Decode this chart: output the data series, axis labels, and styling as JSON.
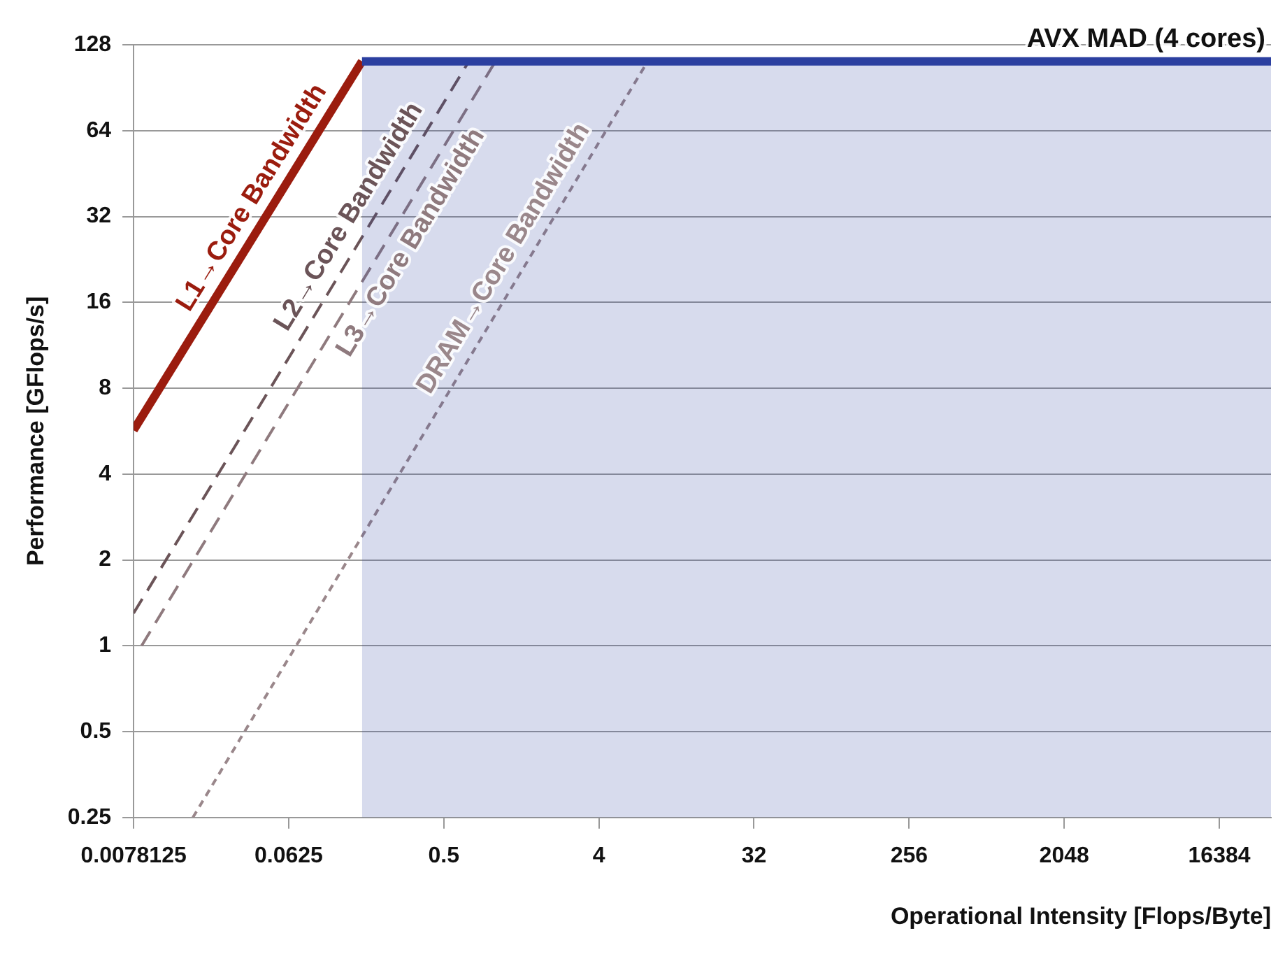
{
  "chart_data": {
    "type": "line",
    "xlabel": "Operational Intensity [Flops/Byte]",
    "ylabel": "Performance [GFlops/s]",
    "log": "xy",
    "grid": "y",
    "marker": "none",
    "xlim": [
      0.0078125,
      32768
    ],
    "xticks": [
      0.0078125,
      0.0625,
      0.5,
      4,
      32,
      256,
      2048,
      16384
    ],
    "ylim": [
      0.25,
      128
    ],
    "yticks": [
      0.25,
      0.5,
      1,
      2,
      4,
      8,
      16,
      32,
      64,
      128
    ],
    "series": [
      {
        "name": "AVX MAD (4 cores)",
        "type": "area",
        "color": "#2b3fa0",
        "line_style": "solid",
        "x": [
          0.167,
          32768
        ],
        "values": [
          112,
          112
        ]
      },
      {
        "name": "L1→Core Bandwidth",
        "color": "#9b1c0e",
        "line_style": "solid",
        "x": [
          0.0078125,
          0.167
        ],
        "values": [
          5.7,
          112
        ]
      },
      {
        "name": "L2→Core Bandwidth",
        "color": "#6b5458",
        "line_style": "dashed",
        "x": [
          0.0078125,
          0.7
        ],
        "values": [
          1.3,
          112
        ]
      },
      {
        "name": "L3→Core Bandwidth",
        "color": "#8f7a7e",
        "line_style": "dashed",
        "x": [
          0.0087,
          1
        ],
        "values": [
          1,
          112
        ]
      },
      {
        "name": "DRAM→Core Bandwidth",
        "color": "#9a878b",
        "line_style": "dotted",
        "x": [
          0.0173,
          7.7
        ],
        "values": [
          0.25,
          112
        ]
      }
    ]
  }
}
